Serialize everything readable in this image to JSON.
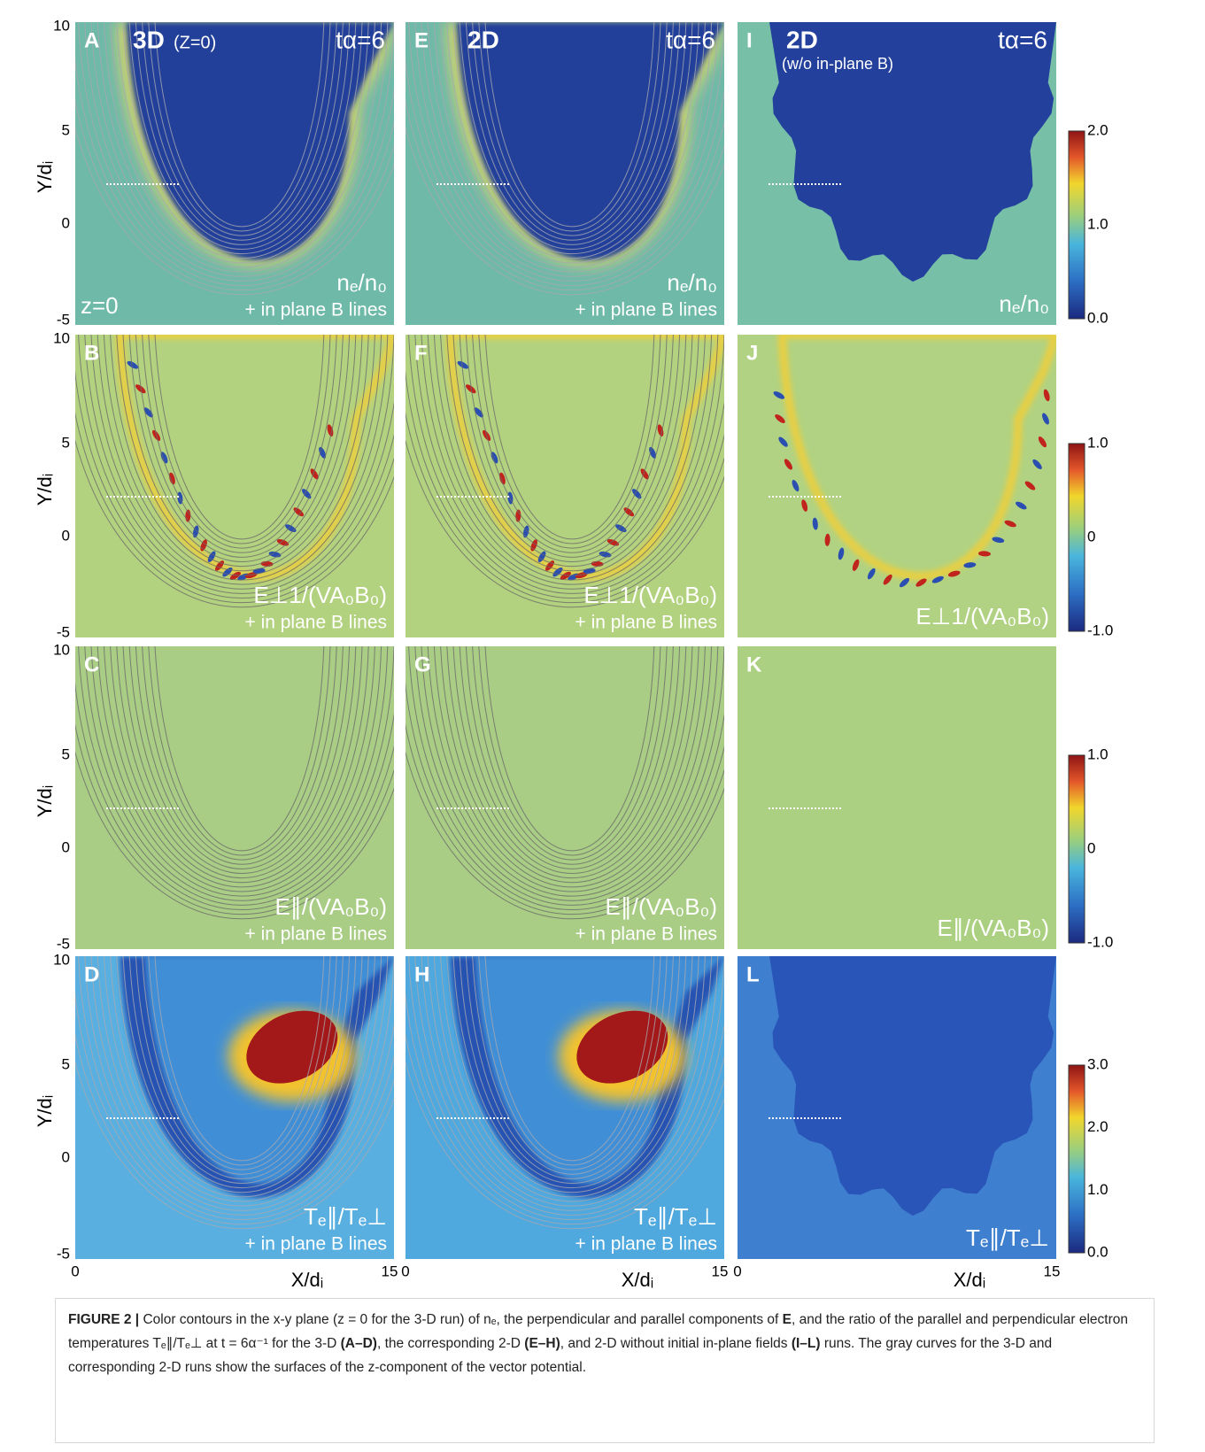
{
  "figure": {
    "panels": [
      {
        "letter": "A",
        "run": "3D",
        "run_note": "(Z=0)",
        "time": "tα=6",
        "quantity": "nₑ/n₀",
        "note": "+ in plane B lines",
        "corner": "z=0"
      },
      {
        "letter": "B",
        "quantity": "E⊥1/(VA₀B₀)",
        "note": "+ in plane B lines"
      },
      {
        "letter": "C",
        "quantity": "E∥/(VA₀B₀)",
        "note": "+ in plane B lines"
      },
      {
        "letter": "D",
        "quantity": "Tₑ∥/Tₑ⊥",
        "note": "+ in plane B lines"
      },
      {
        "letter": "E",
        "run": "2D",
        "time": "tα=6",
        "quantity": "nₑ/n₀",
        "note": "+ in plane B lines"
      },
      {
        "letter": "F",
        "quantity": "E⊥1/(VA₀B₀)",
        "note": "+ in plane B lines"
      },
      {
        "letter": "G",
        "quantity": "E∥/(VA₀B₀)",
        "note": "+ in plane B lines"
      },
      {
        "letter": "H",
        "quantity": "Tₑ∥/Tₑ⊥",
        "note": "+ in plane B lines"
      },
      {
        "letter": "I",
        "run": "2D",
        "run_note": "(w/o in-plane B)",
        "time": "tα=6",
        "quantity": "nₑ/n₀"
      },
      {
        "letter": "J",
        "quantity": "E⊥1/(VA₀B₀)"
      },
      {
        "letter": "K",
        "quantity": "E∥/(VA₀B₀)"
      },
      {
        "letter": "L",
        "quantity": "Tₑ∥/Tₑ⊥"
      }
    ],
    "y_label": "Y/dᵢ",
    "y_ticks": [
      "10",
      "5",
      "0",
      "-5"
    ],
    "x_label": "X/dᵢ",
    "x_ticks": [
      "0",
      "15"
    ],
    "colorbars": [
      {
        "ticks": [
          "2.0",
          "1.0",
          "0.0"
        ]
      },
      {
        "ticks": [
          "1.0",
          "0",
          "-1.0"
        ]
      },
      {
        "ticks": [
          "1.0",
          "0",
          "-1.0"
        ]
      },
      {
        "ticks": [
          "3.0",
          "2.0",
          "1.0",
          "0.0"
        ]
      }
    ]
  },
  "caption": {
    "label": "FIGURE 2 |",
    "segments": [
      {
        "text": " Color contours in the x-y plane (z = 0 for the 3-D run) of nₑ, the perpendicular and parallel components of "
      },
      {
        "text": "E",
        "bold": true
      },
      {
        "text": ", and the ratio of the parallel and perpendicular electron temperatures Tₑ∥/Tₑ⊥ at t = 6α⁻¹ for the 3-D "
      },
      {
        "text": "(A–D)",
        "bold": true
      },
      {
        "text": ", the corresponding 2-D "
      },
      {
        "text": "(E–H)",
        "bold": true
      },
      {
        "text": ", and 2-D without initial in-plane fields "
      },
      {
        "text": "(I–L)",
        "bold": true
      },
      {
        "text": " runs. The gray curves for the 3-D and corresponding 2-D runs show the surfaces of the z-component of the vector potential."
      }
    ]
  }
}
